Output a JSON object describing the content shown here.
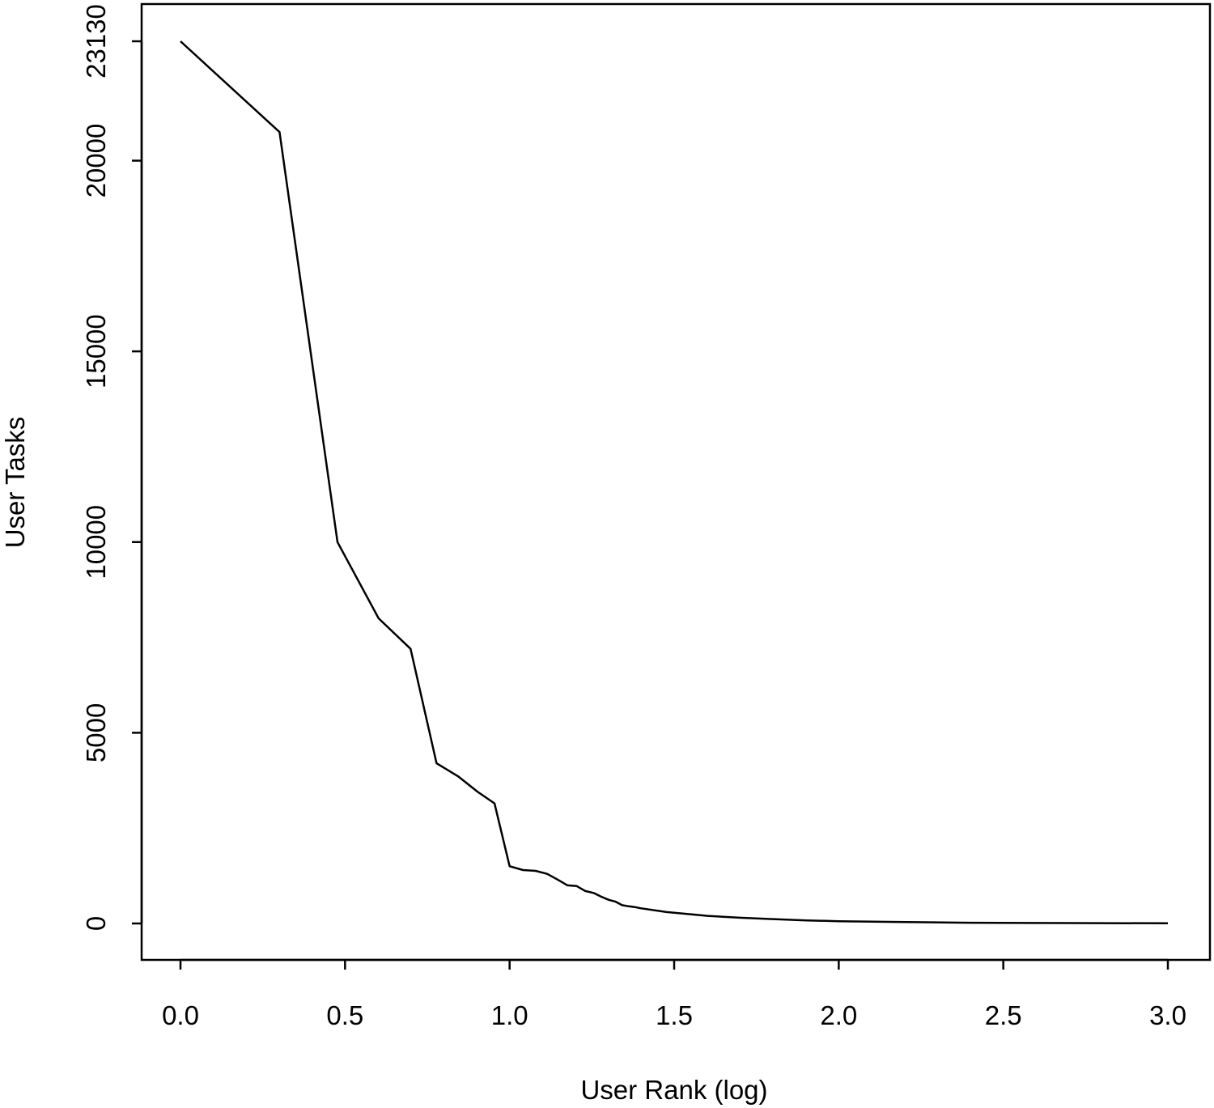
{
  "chart_data": {
    "type": "line",
    "title": "",
    "xlabel": "User Rank (log)",
    "ylabel": "User Tasks",
    "xlim": [
      0,
      3.0
    ],
    "ylim": [
      0,
      23130
    ],
    "x_ticks": [
      "0.0",
      "0.5",
      "1.0",
      "1.5",
      "2.0",
      "2.5",
      "3.0"
    ],
    "y_ticks": [
      "0",
      "5000",
      "10000",
      "15000",
      "20000",
      "23130"
    ],
    "grid": false,
    "legend": "none",
    "line_color": "#000000",
    "series": [
      {
        "x": [
          0.0,
          0.301,
          0.477,
          0.602,
          0.699,
          0.778,
          0.845,
          0.903,
          0.954,
          1.0,
          1.041,
          1.079,
          1.114,
          1.146,
          1.176,
          1.204,
          1.23,
          1.255,
          1.279,
          1.301,
          1.322,
          1.342,
          1.362,
          1.38,
          1.398,
          1.477,
          1.602,
          1.699,
          1.778,
          1.903,
          2.0,
          2.176,
          2.398,
          2.699,
          3.0
        ],
        "y": [
          23130,
          20750,
          10000,
          8000,
          7200,
          4200,
          3850,
          3450,
          3150,
          1500,
          1400,
          1380,
          1300,
          1150,
          1000,
          980,
          850,
          800,
          700,
          620,
          570,
          480,
          450,
          430,
          400,
          300,
          200,
          150,
          120,
          80,
          60,
          40,
          20,
          10,
          5
        ]
      }
    ]
  }
}
